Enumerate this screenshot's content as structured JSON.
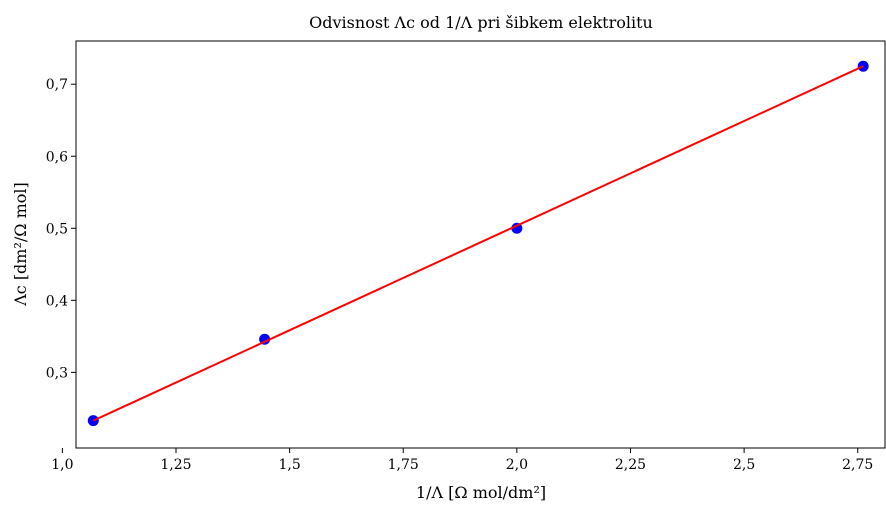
{
  "chart_data": {
    "type": "scatter",
    "title": "Odvisnost Λc od 1/Λ pri šibkem elektrolitu",
    "xlabel": "1/Λ [Ω mol/dm²]",
    "ylabel": "Λc [dm²/Ω mol]",
    "xlim": [
      1.03,
      2.81
    ],
    "ylim": [
      0.195,
      0.76
    ],
    "x_ticks": [
      1.0,
      1.25,
      1.5,
      1.75,
      2.0,
      2.25,
      2.5,
      2.75
    ],
    "x_tick_labels": [
      "1,0",
      "1,25",
      "1,5",
      "1,75",
      "2,0",
      "2,25",
      "2,5",
      "2,75"
    ],
    "y_ticks": [
      0.3,
      0.4,
      0.5,
      0.6,
      0.7
    ],
    "y_tick_labels": [
      "0,3",
      "0,4",
      "0,5",
      "0,6",
      "0,7"
    ],
    "grid": false,
    "series": [
      {
        "kind": "points",
        "color": "#0000ff",
        "x": [
          1.068,
          1.445,
          2.0,
          2.762
        ],
        "y": [
          0.233,
          0.346,
          0.5,
          0.725
        ]
      },
      {
        "kind": "line",
        "color": "#ff0000",
        "x": [
          1.068,
          2.762
        ],
        "y": [
          0.233,
          0.725
        ]
      }
    ]
  }
}
